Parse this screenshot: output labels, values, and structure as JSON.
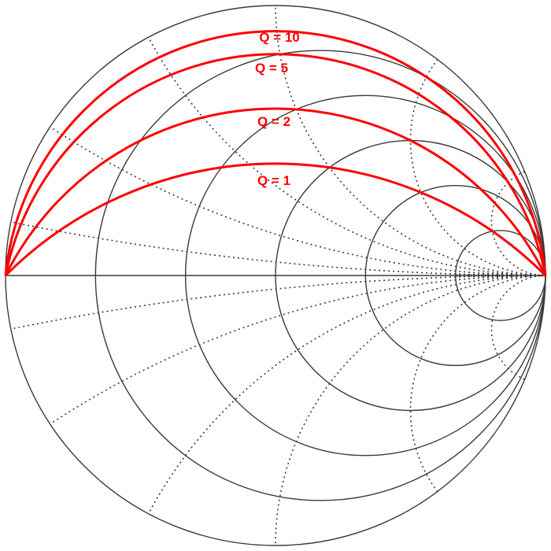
{
  "diagram": {
    "type": "smith-chart",
    "resistance_circles": [
      0.2,
      0.5,
      1,
      2,
      5
    ],
    "reactance_arcs": [
      0.1,
      0.3,
      0.6,
      1,
      2,
      5,
      -0.1,
      -0.3,
      -0.6,
      -1,
      -2,
      -5
    ],
    "q_curves": [
      {
        "q": 10,
        "label": "Q = 10"
      },
      {
        "q": 5,
        "label": "Q = 5"
      },
      {
        "q": 2,
        "label": "Q = 2"
      },
      {
        "q": 1,
        "label": "Q = 1"
      }
    ],
    "colors": {
      "grid": "#3a3a3a",
      "reactance": "#3a3a3a",
      "q_curve": "#ff0000",
      "background": "#ffffff"
    }
  }
}
